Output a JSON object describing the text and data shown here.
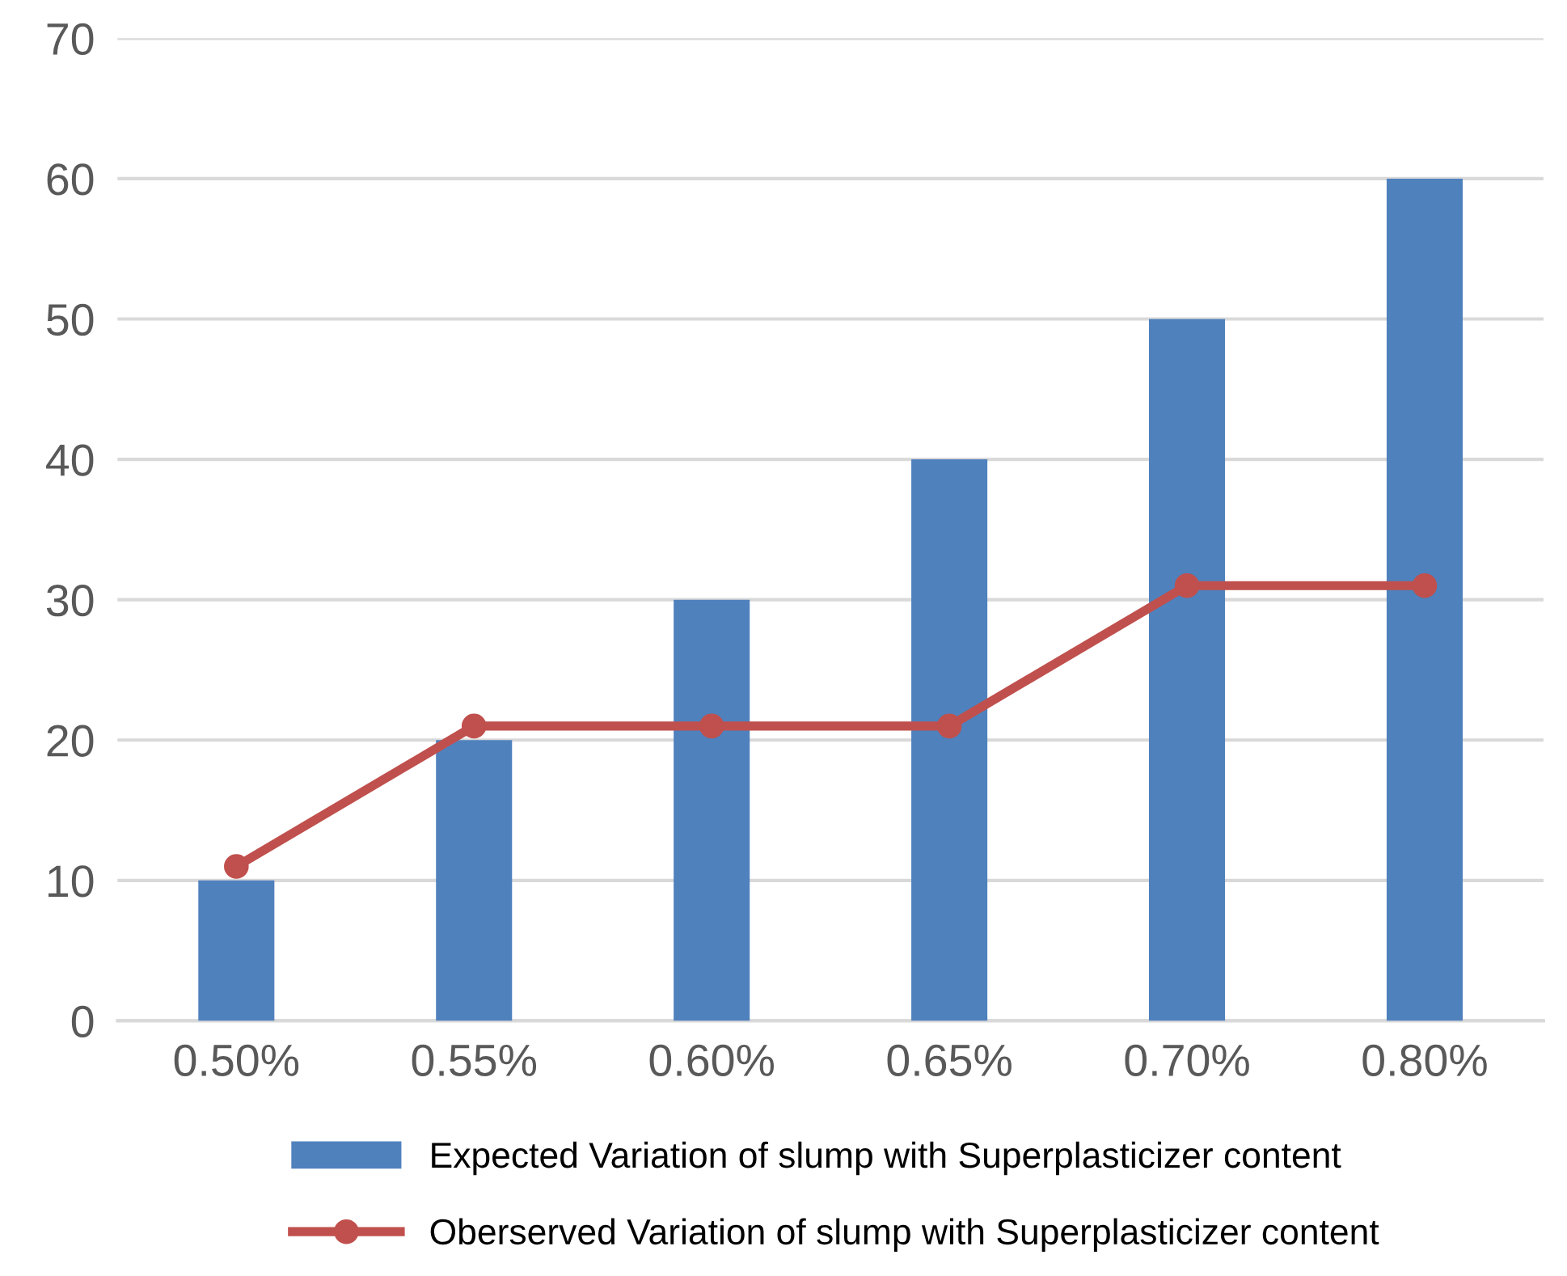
{
  "chart_data": {
    "type": "bar",
    "categories": [
      "0.50%",
      "0.55%",
      "0.60%",
      "0.65%",
      "0.70%",
      "0.80%"
    ],
    "series": [
      {
        "name": "Expected Variation of slump with Superplasticizer content",
        "color": "#4f81bd",
        "values": [
          10,
          20,
          30,
          40,
          50,
          60
        ]
      },
      {
        "name": "Oberserved Variation of slump with Superplasticizer content",
        "type": "line",
        "color": "#c0504d",
        "marker": "circle",
        "values": [
          11,
          21,
          21,
          21,
          31,
          31
        ]
      }
    ],
    "ylim": [
      0,
      70
    ],
    "yticks": [
      0,
      10,
      20,
      30,
      40,
      50,
      60,
      70
    ],
    "grid": "y",
    "legend": "bottom"
  }
}
